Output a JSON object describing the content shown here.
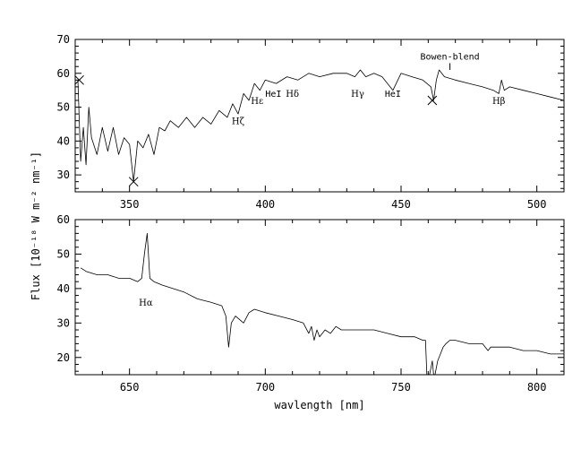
{
  "chart_data": [
    {
      "type": "line",
      "xlim": [
        330,
        510
      ],
      "ylim": [
        25,
        70
      ],
      "x_ticks": [
        350,
        400,
        450,
        500
      ],
      "y_ticks": [
        30,
        40,
        50,
        60,
        70
      ],
      "series": [
        {
          "x": [
            331,
            332,
            333,
            334,
            335,
            336,
            338,
            340,
            342,
            344,
            346,
            348,
            350,
            351.5,
            353,
            355,
            357,
            359,
            361,
            363,
            365,
            368,
            371,
            374,
            377,
            380,
            383,
            386,
            388,
            390,
            392,
            394,
            396,
            398,
            400,
            404,
            408,
            412,
            416,
            420,
            425,
            430,
            433,
            435,
            437,
            440,
            443,
            447,
            450,
            454,
            458,
            461,
            462,
            463,
            464,
            466,
            470,
            475,
            480,
            484,
            486,
            487,
            488,
            490,
            495,
            500,
            505,
            510
          ],
          "y": [
            58,
            34,
            44,
            33,
            50,
            41,
            36,
            44,
            37,
            44,
            36,
            41,
            39,
            28,
            40,
            38,
            42,
            36,
            44,
            43,
            46,
            44,
            47,
            44,
            47,
            45,
            49,
            47,
            51,
            48,
            54,
            52,
            57,
            55,
            58,
            57,
            59,
            58,
            60,
            59,
            60,
            60,
            59,
            61,
            59,
            60,
            59,
            55,
            60,
            59,
            58,
            56,
            52,
            58,
            61,
            59,
            58,
            57,
            56,
            55,
            54,
            58,
            55,
            56,
            55,
            54,
            53,
            52
          ]
        }
      ],
      "markers": [
        {
          "x": 331.5,
          "y": 58
        },
        {
          "x": 351.5,
          "y": 28
        },
        {
          "x": 461.5,
          "y": 52
        }
      ],
      "annotations": [
        {
          "text": "Hζ",
          "x": 390,
          "y": 45
        },
        {
          "text": "Hε",
          "x": 397,
          "y": 51
        },
        {
          "text": "HeI",
          "x": 403,
          "y": 53
        },
        {
          "text": "Hδ",
          "x": 410,
          "y": 53
        },
        {
          "text": "Hγ",
          "x": 434,
          "y": 53
        },
        {
          "text": "HeI",
          "x": 447,
          "y": 53
        },
        {
          "text": "Hβ",
          "x": 486,
          "y": 51
        },
        {
          "text": "Bowen-blend",
          "x": 468,
          "y": 64
        }
      ]
    },
    {
      "type": "line",
      "xlim": [
        630,
        810
      ],
      "ylim": [
        15,
        60
      ],
      "x_ticks": [
        650,
        700,
        750,
        800
      ],
      "y_ticks": [
        20,
        30,
        40,
        50,
        60
      ],
      "xlabel": "wavlength [nm]",
      "series": [
        {
          "x": [
            632,
            634,
            638,
            642,
            646,
            650,
            653,
            654.5,
            655.5,
            656.5,
            657.5,
            659,
            662,
            666,
            670,
            675,
            680,
            684,
            685.5,
            686.5,
            687.5,
            689,
            692,
            694,
            696,
            700,
            705,
            710,
            714,
            716,
            717,
            718,
            719,
            720,
            722,
            724,
            726,
            728,
            730,
            735,
            740,
            745,
            750,
            755,
            758,
            759,
            759.5,
            760.5,
            761,
            761.5,
            762,
            762.5,
            763.5,
            764.5,
            765.5,
            766.5,
            768,
            770,
            775,
            780,
            782,
            783,
            785,
            790,
            795,
            800,
            805,
            810
          ],
          "y": [
            46,
            45,
            44,
            44,
            43,
            43,
            42,
            43,
            50,
            56,
            43,
            42,
            41,
            40,
            39,
            37,
            36,
            35,
            32,
            23,
            30,
            32,
            30,
            33,
            34,
            33,
            32,
            31,
            30,
            27,
            29,
            25,
            28,
            26,
            28,
            27,
            29,
            28,
            28,
            28,
            28,
            27,
            26,
            26,
            25,
            25,
            15,
            15,
            17,
            19,
            15,
            15,
            19,
            21,
            23,
            24,
            25,
            25,
            24,
            24,
            22,
            23,
            23,
            23,
            22,
            22,
            21,
            21
          ]
        }
      ],
      "annotations": [
        {
          "text": "Hα",
          "x": 656,
          "y": 35
        }
      ]
    }
  ],
  "ylabel": "Flux [10⁻¹⁸ W m⁻² nm⁻¹]"
}
